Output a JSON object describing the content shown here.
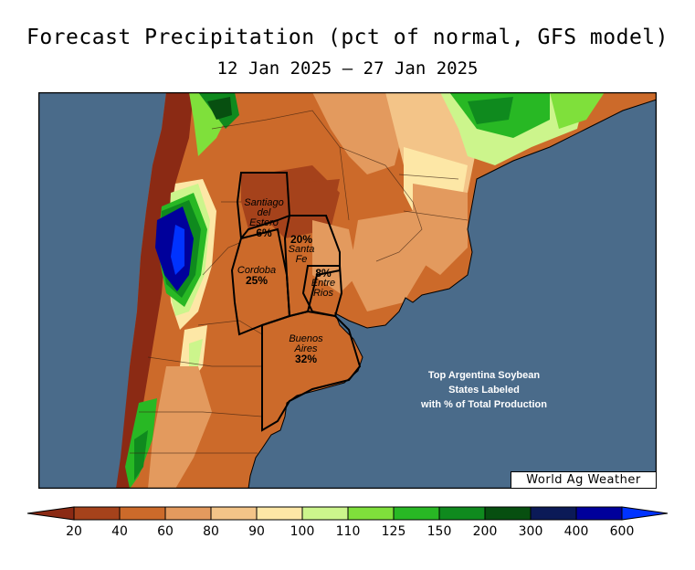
{
  "header": {
    "title": "Forecast Precipitation (pct of normal, GFS model)",
    "date_range": "12 Jan 2025 – 27 Jan 2025"
  },
  "map": {
    "ocean_color": "#4a6b8a",
    "states": [
      {
        "name": "Santiago del Estero",
        "label_lines": [
          "Santiago",
          "del",
          "Estero"
        ],
        "pct": "6%"
      },
      {
        "name": "Santa Fe",
        "label_lines": [
          "Santa",
          "Fe"
        ],
        "pct": "20%"
      },
      {
        "name": "Cordoba",
        "label_lines": [
          "Cordoba"
        ],
        "pct": "25%"
      },
      {
        "name": "Entre Rios",
        "label_lines": [
          "Entre",
          "Rios"
        ],
        "pct": "8%"
      },
      {
        "name": "Buenos Aires",
        "label_lines": [
          "Buenos",
          "Aires"
        ],
        "pct": "32%"
      }
    ],
    "note_lines": [
      "Top Argentina Soybean",
      "States Labeled",
      "with % of Total Production"
    ],
    "credit": "World Ag Weather"
  },
  "legend": {
    "colors": [
      "#8b2a14",
      "#a5421b",
      "#cc6a2a",
      "#e39a5e",
      "#f3c488",
      "#fde7a6",
      "#ccf58c",
      "#7fe03b",
      "#28b824",
      "#0f8a1e",
      "#074f10",
      "#0b1a57",
      "#00009b",
      "#0033ff"
    ],
    "tick_labels": [
      "20",
      "40",
      "60",
      "80",
      "90",
      "100",
      "110",
      "125",
      "150",
      "200",
      "300",
      "400",
      "600"
    ]
  }
}
